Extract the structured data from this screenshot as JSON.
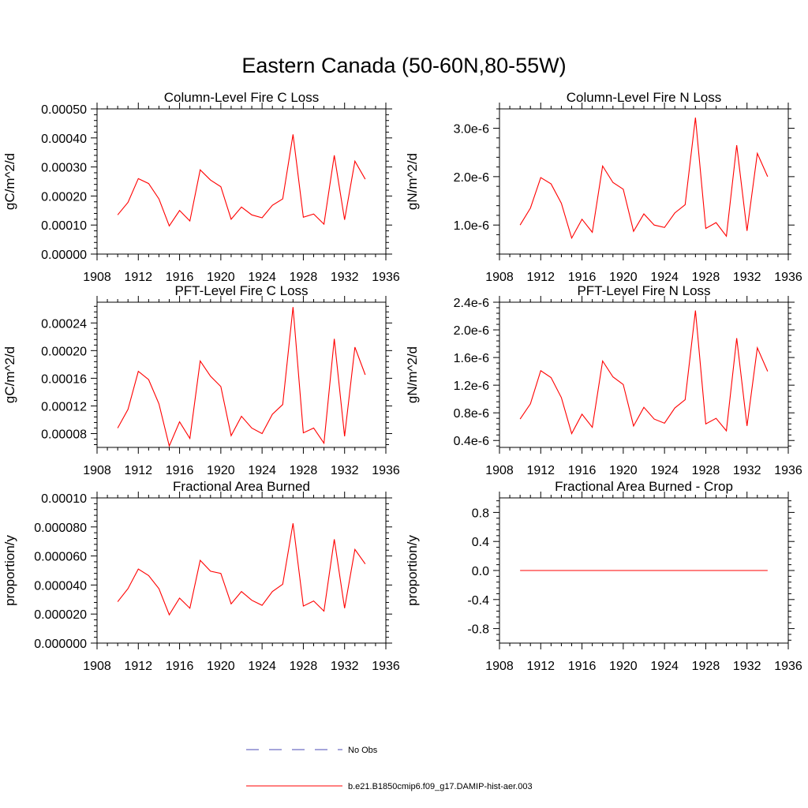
{
  "figure": {
    "title": "Eastern Canada (50-60N,80-55W)",
    "legend": [
      {
        "label": "No Obs",
        "color": "#4b4bb4",
        "style": "dashed"
      },
      {
        "label": "b.e21.B1850cmip6.f09_g17.DAMIP-hist-aer.003",
        "color": "#ff0000",
        "style": "solid"
      }
    ]
  },
  "chart_data": [
    {
      "type": "line",
      "title": "Column-Level Fire C Loss",
      "ylabel": "gC/m^2/d",
      "xlim": [
        1908,
        1936
      ],
      "xticks": [
        1908,
        1912,
        1916,
        1920,
        1924,
        1928,
        1932,
        1936
      ],
      "x_tick_labels": [
        "1908",
        "1912",
        "1916",
        "1920",
        "1924",
        "1928",
        "1932",
        "1936"
      ],
      "ylim": [
        0,
        0.0005
      ],
      "yticks": [
        0,
        0.0001,
        0.0002,
        0.0003,
        0.0004,
        0.0005
      ],
      "y_tick_labels": [
        "0.00000",
        "0.00010",
        "0.00020",
        "0.00030",
        "0.00040",
        "0.00050"
      ],
      "x": [
        1910,
        1911,
        1912,
        1913,
        1914,
        1915,
        1916,
        1917,
        1918,
        1919,
        1920,
        1921,
        1922,
        1923,
        1924,
        1925,
        1926,
        1927,
        1928,
        1929,
        1930,
        1931,
        1932,
        1933,
        1934
      ],
      "series": [
        {
          "color": "#ff0000",
          "values": [
            0.000135,
            0.000178,
            0.00026,
            0.000243,
            0.00019,
            9.7e-05,
            0.00015,
            0.000114,
            0.00029,
            0.000255,
            0.000232,
            0.00012,
            0.000162,
            0.000135,
            0.000125,
            0.000168,
            0.00019,
            0.000412,
            0.000127,
            0.000138,
            0.000103,
            0.00034,
            0.000118,
            0.00032,
            0.000258
          ]
        }
      ]
    },
    {
      "type": "line",
      "title": "Column-Level Fire N Loss",
      "ylabel": "gN/m^2/d",
      "xlim": [
        1908,
        1936
      ],
      "xticks": [
        1908,
        1912,
        1916,
        1920,
        1924,
        1928,
        1932,
        1936
      ],
      "x_tick_labels": [
        "1908",
        "1912",
        "1916",
        "1920",
        "1924",
        "1928",
        "1932",
        "1936"
      ],
      "ylim": [
        4e-07,
        3.4e-06
      ],
      "yticks": [
        1e-06,
        2e-06,
        3e-06
      ],
      "y_tick_labels": [
        "1.0e-6",
        "2.0e-6",
        "3.0e-6"
      ],
      "x": [
        1910,
        1911,
        1912,
        1913,
        1914,
        1915,
        1916,
        1917,
        1918,
        1919,
        1920,
        1921,
        1922,
        1923,
        1924,
        1925,
        1926,
        1927,
        1928,
        1929,
        1930,
        1931,
        1932,
        1933,
        1934
      ],
      "series": [
        {
          "color": "#ff0000",
          "values": [
            1e-06,
            1.35e-06,
            1.98e-06,
            1.85e-06,
            1.45e-06,
            7.3e-07,
            1.12e-06,
            8.5e-07,
            2.22e-06,
            1.88e-06,
            1.74e-06,
            8.7e-07,
            1.23e-06,
            1e-06,
            9.5e-07,
            1.25e-06,
            1.42e-06,
            3.22e-06,
            9.3e-07,
            1.05e-06,
            7.7e-07,
            2.65e-06,
            8.8e-07,
            2.48e-06,
            2e-06
          ]
        }
      ]
    },
    {
      "type": "line",
      "title": "PFT-Level Fire C Loss",
      "ylabel": "gC/m^2/d",
      "xlim": [
        1908,
        1936
      ],
      "xticks": [
        1908,
        1912,
        1916,
        1920,
        1924,
        1928,
        1932,
        1936
      ],
      "x_tick_labels": [
        "1908",
        "1912",
        "1916",
        "1920",
        "1924",
        "1928",
        "1932",
        "1936"
      ],
      "ylim": [
        6e-05,
        0.00027
      ],
      "yticks": [
        8e-05,
        0.00012,
        0.00016,
        0.0002,
        0.00024
      ],
      "y_tick_labels": [
        "0.00008",
        "0.00012",
        "0.00016",
        "0.00020",
        "0.00024"
      ],
      "x": [
        1910,
        1911,
        1912,
        1913,
        1914,
        1915,
        1916,
        1917,
        1918,
        1919,
        1920,
        1921,
        1922,
        1923,
        1924,
        1925,
        1926,
        1927,
        1928,
        1929,
        1930,
        1931,
        1932,
        1933,
        1934
      ],
      "series": [
        {
          "color": "#ff0000",
          "values": [
            8.8e-05,
            0.000115,
            0.00017,
            0.000158,
            0.000123,
            6.2e-05,
            9.7e-05,
            7.3e-05,
            0.000185,
            0.000163,
            0.000148,
            7.7e-05,
            0.000105,
            8.8e-05,
            8e-05,
            0.000108,
            0.000122,
            0.000263,
            8.1e-05,
            8.8e-05,
            6.6e-05,
            0.000217,
            7.6e-05,
            0.000205,
            0.000165
          ]
        }
      ]
    },
    {
      "type": "line",
      "title": "PFT-Level Fire N Loss",
      "ylabel": "gN/m^2/d",
      "xlim": [
        1908,
        1936
      ],
      "xticks": [
        1908,
        1912,
        1916,
        1920,
        1924,
        1928,
        1932,
        1936
      ],
      "x_tick_labels": [
        "1908",
        "1912",
        "1916",
        "1920",
        "1924",
        "1928",
        "1932",
        "1936"
      ],
      "ylim": [
        3e-07,
        2.4e-06
      ],
      "yticks": [
        4e-07,
        8e-07,
        1.2e-06,
        1.6e-06,
        2e-06,
        2.4e-06
      ],
      "y_tick_labels": [
        "0.4e-6",
        "0.8e-6",
        "1.2e-6",
        "1.6e-6",
        "2.0e-6",
        "2.4e-6"
      ],
      "x": [
        1910,
        1911,
        1912,
        1913,
        1914,
        1915,
        1916,
        1917,
        1918,
        1919,
        1920,
        1921,
        1922,
        1923,
        1924,
        1925,
        1926,
        1927,
        1928,
        1929,
        1930,
        1931,
        1932,
        1933,
        1934
      ],
      "series": [
        {
          "color": "#ff0000",
          "values": [
            7.1e-07,
            9.3e-07,
            1.41e-06,
            1.31e-06,
            1.02e-06,
            5e-07,
            7.8e-07,
            5.9e-07,
            1.55e-06,
            1.32e-06,
            1.21e-06,
            6.1e-07,
            8.8e-07,
            7.1e-07,
            6.5e-07,
            8.7e-07,
            9.9e-07,
            2.28e-06,
            6.4e-07,
            7.2e-07,
            5.4e-07,
            1.88e-06,
            6.1e-07,
            1.74e-06,
            1.4e-06
          ]
        }
      ]
    },
    {
      "type": "line",
      "title": "Fractional Area Burned",
      "ylabel": "proportion/y",
      "xlim": [
        1908,
        1936
      ],
      "xticks": [
        1908,
        1912,
        1916,
        1920,
        1924,
        1928,
        1932,
        1936
      ],
      "x_tick_labels": [
        "1908",
        "1912",
        "1916",
        "1920",
        "1924",
        "1928",
        "1932",
        "1936"
      ],
      "ylim": [
        0,
        0.0001
      ],
      "yticks": [
        0,
        2e-05,
        4e-05,
        6e-05,
        8e-05,
        0.0001
      ],
      "y_tick_labels": [
        "0.000000",
        "0.000020",
        "0.000040",
        "0.000060",
        "0.000080",
        "0.00010"
      ],
      "x": [
        1910,
        1911,
        1912,
        1913,
        1914,
        1915,
        1916,
        1917,
        1918,
        1919,
        1920,
        1921,
        1922,
        1923,
        1924,
        1925,
        1926,
        1927,
        1928,
        1929,
        1930,
        1931,
        1932,
        1933,
        1934
      ],
      "series": [
        {
          "color": "#ff0000",
          "values": [
            2.85e-05,
            3.75e-05,
            5.1e-05,
            4.65e-05,
            3.75e-05,
            1.95e-05,
            3.1e-05,
            2.4e-05,
            5.7e-05,
            4.95e-05,
            4.8e-05,
            2.7e-05,
            3.55e-05,
            2.95e-05,
            2.6e-05,
            3.55e-05,
            4.05e-05,
            8.25e-05,
            2.55e-05,
            2.9e-05,
            2.2e-05,
            7.15e-05,
            2.4e-05,
            6.45e-05,
            5.45e-05
          ]
        }
      ]
    },
    {
      "type": "line",
      "title": "Fractional Area Burned - Crop",
      "ylabel": "proportion/y",
      "xlim": [
        1908,
        1936
      ],
      "xticks": [
        1908,
        1912,
        1916,
        1920,
        1924,
        1928,
        1932,
        1936
      ],
      "x_tick_labels": [
        "1908",
        "1912",
        "1916",
        "1920",
        "1924",
        "1928",
        "1932",
        "1936"
      ],
      "ylim": [
        -1.0,
        1.0
      ],
      "yticks": [
        -0.8,
        -0.4,
        0,
        0.4,
        0.8
      ],
      "y_tick_labels": [
        "-0.8",
        "-0.4",
        "0.0",
        "0.4",
        "0.8"
      ],
      "x": [
        1910,
        1934
      ],
      "series": [
        {
          "color": "#ff0000",
          "values": [
            0,
            0
          ]
        }
      ]
    }
  ]
}
